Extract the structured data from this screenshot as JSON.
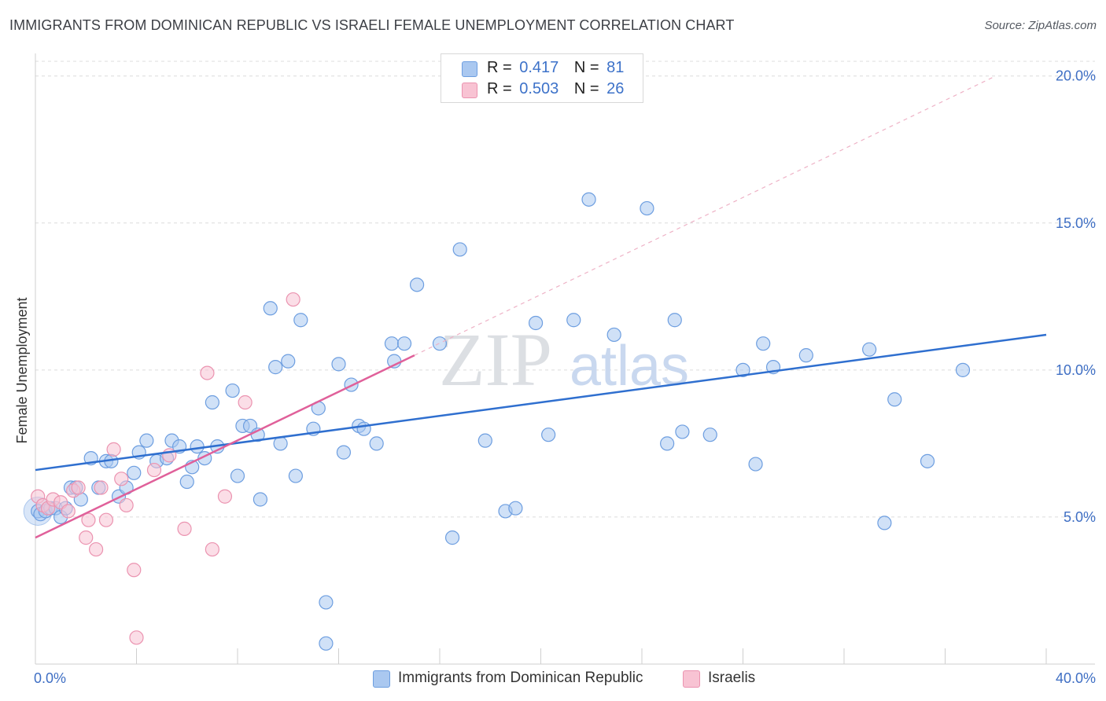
{
  "title": "IMMIGRANTS FROM DOMINICAN REPUBLIC VS ISRAELI FEMALE UNEMPLOYMENT CORRELATION CHART",
  "source": "Source: ZipAtlas.com",
  "watermark": {
    "zip": "ZIP",
    "atlas": "atlas"
  },
  "legend": {
    "r_label": "R =",
    "n_label": "N =",
    "series1": {
      "r": "0.417",
      "n": "81"
    },
    "series2": {
      "r": "0.503",
      "n": "26"
    }
  },
  "bottom_legend": {
    "series1": "Immigrants from Dominican Republic",
    "series2": "Israelis"
  },
  "colors": {
    "blue_fill": "#aac8f0",
    "blue_stroke": "#6d9ee0",
    "blue_line": "#2f6fcf",
    "pink_fill": "#f8c3d3",
    "pink_stroke": "#eb93b0",
    "pink_line": "#e0609a",
    "axis_text": "#3f6fc4",
    "grid": "#dcdcdc"
  },
  "chart_data": {
    "type": "scatter",
    "title": "IMMIGRANTS FROM DOMINICAN REPUBLIC VS ISRAELI FEMALE UNEMPLOYMENT CORRELATION CHART",
    "xlabel": "",
    "ylabel": "Female Unemployment",
    "xlim": [
      0,
      40
    ],
    "ylim": [
      0,
      20.5
    ],
    "x_tick_labels": [
      "0.0%",
      "40.0%"
    ],
    "y_ticks": [
      5,
      10,
      15,
      20
    ],
    "y_tick_labels": [
      "5.0%",
      "10.0%",
      "15.0%",
      "20.0%"
    ],
    "grid": true,
    "series": [
      {
        "name": "Immigrants from Dominican Republic",
        "r": 0.417,
        "n": 81,
        "trend": {
          "x0": 0,
          "y0": 6.6,
          "x1": 40,
          "y1": 11.2
        },
        "points": [
          [
            0.1,
            5.2
          ],
          [
            0.2,
            5.1
          ],
          [
            0.4,
            5.2
          ],
          [
            0.6,
            5.3
          ],
          [
            0.8,
            5.3
          ],
          [
            1.0,
            5.0
          ],
          [
            1.2,
            5.3
          ],
          [
            1.4,
            6.0
          ],
          [
            1.6,
            6.0
          ],
          [
            1.8,
            5.6
          ],
          [
            2.2,
            7.0
          ],
          [
            2.5,
            6.0
          ],
          [
            2.8,
            6.9
          ],
          [
            3.0,
            6.9
          ],
          [
            3.3,
            5.7
          ],
          [
            3.6,
            6.0
          ],
          [
            3.9,
            6.5
          ],
          [
            4.1,
            7.2
          ],
          [
            4.4,
            7.6
          ],
          [
            4.8,
            6.9
          ],
          [
            5.2,
            7.0
          ],
          [
            5.4,
            7.6
          ],
          [
            5.7,
            7.4
          ],
          [
            6.0,
            6.2
          ],
          [
            6.2,
            6.7
          ],
          [
            6.4,
            7.4
          ],
          [
            6.7,
            7.0
          ],
          [
            7.0,
            8.9
          ],
          [
            7.2,
            7.4
          ],
          [
            7.8,
            9.3
          ],
          [
            8.0,
            6.4
          ],
          [
            8.2,
            8.1
          ],
          [
            8.5,
            8.1
          ],
          [
            8.8,
            7.8
          ],
          [
            8.9,
            5.6
          ],
          [
            9.3,
            12.1
          ],
          [
            9.5,
            10.1
          ],
          [
            9.7,
            7.5
          ],
          [
            10.0,
            10.3
          ],
          [
            10.3,
            6.4
          ],
          [
            10.5,
            11.7
          ],
          [
            11.0,
            8.0
          ],
          [
            11.2,
            8.7
          ],
          [
            11.5,
            2.1
          ],
          [
            11.5,
            0.7
          ],
          [
            12.0,
            10.2
          ],
          [
            12.2,
            7.2
          ],
          [
            12.5,
            9.5
          ],
          [
            12.8,
            8.1
          ],
          [
            13.0,
            8.0
          ],
          [
            13.5,
            7.5
          ],
          [
            14.1,
            10.9
          ],
          [
            14.2,
            10.3
          ],
          [
            14.6,
            10.9
          ],
          [
            15.1,
            12.9
          ],
          [
            16.0,
            10.9
          ],
          [
            16.5,
            4.3
          ],
          [
            16.8,
            14.1
          ],
          [
            17.8,
            7.6
          ],
          [
            18.6,
            5.2
          ],
          [
            19.0,
            5.3
          ],
          [
            19.8,
            11.6
          ],
          [
            20.3,
            7.8
          ],
          [
            21.3,
            11.7
          ],
          [
            21.9,
            15.8
          ],
          [
            22.9,
            11.2
          ],
          [
            24.2,
            15.5
          ],
          [
            25.0,
            7.5
          ],
          [
            25.3,
            11.7
          ],
          [
            25.6,
            7.9
          ],
          [
            26.7,
            7.8
          ],
          [
            28.0,
            10.0
          ],
          [
            28.5,
            6.8
          ],
          [
            28.8,
            10.9
          ],
          [
            29.2,
            10.1
          ],
          [
            30.5,
            10.5
          ],
          [
            33.0,
            10.7
          ],
          [
            33.6,
            4.8
          ],
          [
            34.0,
            9.0
          ],
          [
            35.3,
            6.9
          ],
          [
            36.7,
            10.0
          ]
        ]
      },
      {
        "name": "Israelis",
        "r": 0.503,
        "n": 26,
        "trend": {
          "x0": 0,
          "y0": 4.3,
          "x1": 15,
          "y1": 10.5,
          "x1_dashed": 38,
          "y1_dashed": 20.0
        },
        "points": [
          [
            0.1,
            5.7
          ],
          [
            0.3,
            5.4
          ],
          [
            0.5,
            5.3
          ],
          [
            0.7,
            5.6
          ],
          [
            1.0,
            5.5
          ],
          [
            1.3,
            5.2
          ],
          [
            1.5,
            5.9
          ],
          [
            1.7,
            6.0
          ],
          [
            2.0,
            4.3
          ],
          [
            2.1,
            4.9
          ],
          [
            2.4,
            3.9
          ],
          [
            2.6,
            6.0
          ],
          [
            2.8,
            4.9
          ],
          [
            3.1,
            7.3
          ],
          [
            3.4,
            6.3
          ],
          [
            3.6,
            5.4
          ],
          [
            3.9,
            3.2
          ],
          [
            4.0,
            0.9
          ],
          [
            4.7,
            6.6
          ],
          [
            5.3,
            7.1
          ],
          [
            5.9,
            4.6
          ],
          [
            6.8,
            9.9
          ],
          [
            7.0,
            3.9
          ],
          [
            7.5,
            5.7
          ],
          [
            8.3,
            8.9
          ],
          [
            10.2,
            12.4
          ]
        ]
      }
    ]
  }
}
